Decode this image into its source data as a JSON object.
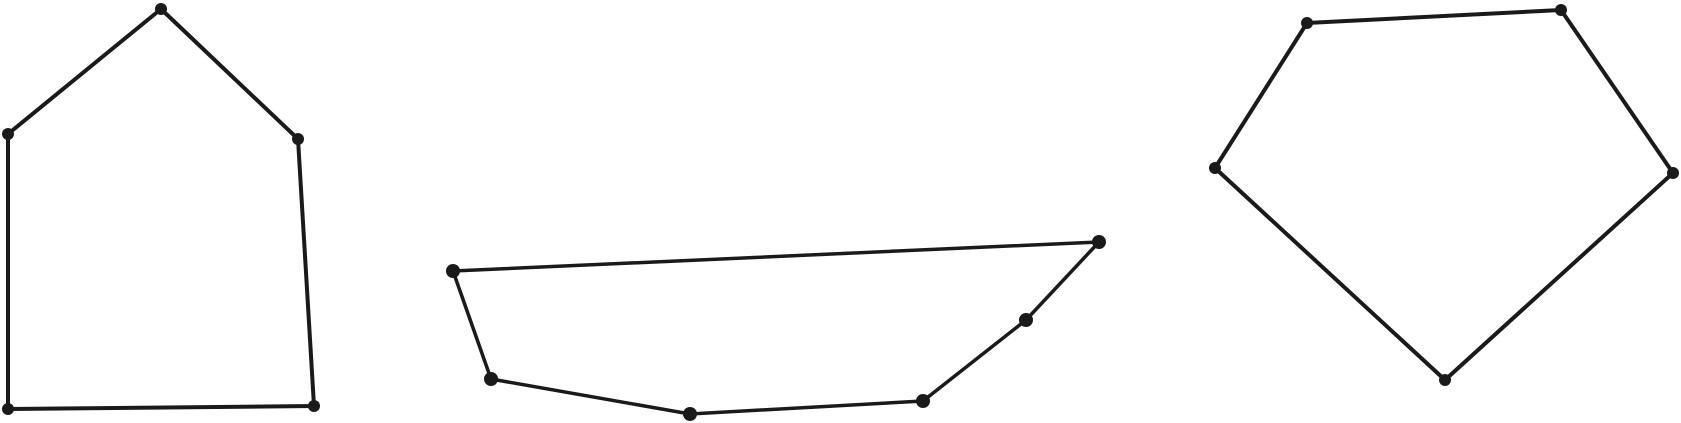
{
  "figure": {
    "shapes": [
      {
        "name": "pentagon-house",
        "kind": "polygon",
        "vertex_count": 5
      },
      {
        "name": "hexagon-boat",
        "kind": "polygon",
        "vertex_count": 6
      },
      {
        "name": "pentagon",
        "kind": "polygon",
        "vertex_count": 5
      }
    ],
    "colors": {
      "stroke": "#1a1a1a",
      "background": "#ffffff"
    }
  }
}
